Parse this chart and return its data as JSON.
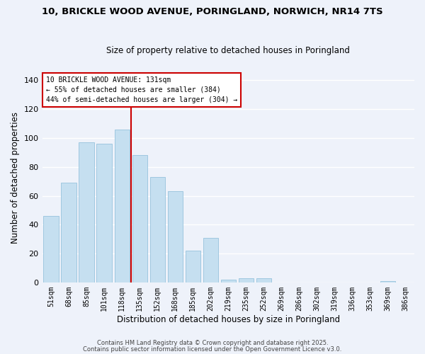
{
  "title1": "10, BRICKLE WOOD AVENUE, PORINGLAND, NORWICH, NR14 7TS",
  "title2": "Size of property relative to detached houses in Poringland",
  "xlabel": "Distribution of detached houses by size in Poringland",
  "ylabel": "Number of detached properties",
  "bar_color": "#c5dff0",
  "bar_edge_color": "#a0c8e0",
  "background_color": "#eef2fa",
  "grid_color": "#ffffff",
  "categories": [
    "51sqm",
    "68sqm",
    "85sqm",
    "101sqm",
    "118sqm",
    "135sqm",
    "152sqm",
    "168sqm",
    "185sqm",
    "202sqm",
    "219sqm",
    "235sqm",
    "252sqm",
    "269sqm",
    "286sqm",
    "302sqm",
    "319sqm",
    "336sqm",
    "353sqm",
    "369sqm",
    "386sqm"
  ],
  "values": [
    46,
    69,
    97,
    96,
    106,
    88,
    73,
    63,
    22,
    31,
    2,
    3,
    3,
    0,
    0,
    0,
    0,
    0,
    0,
    1,
    0
  ],
  "vline_color": "#cc0000",
  "annotation_line1": "10 BRICKLE WOOD AVENUE: 131sqm",
  "annotation_line2": "← 55% of detached houses are smaller (384)",
  "annotation_line3": "44% of semi-detached houses are larger (304) →",
  "ylim": [
    0,
    145
  ],
  "yticks": [
    0,
    20,
    40,
    60,
    80,
    100,
    120,
    140
  ],
  "footnote1": "Contains HM Land Registry data © Crown copyright and database right 2025.",
  "footnote2": "Contains public sector information licensed under the Open Government Licence v3.0."
}
